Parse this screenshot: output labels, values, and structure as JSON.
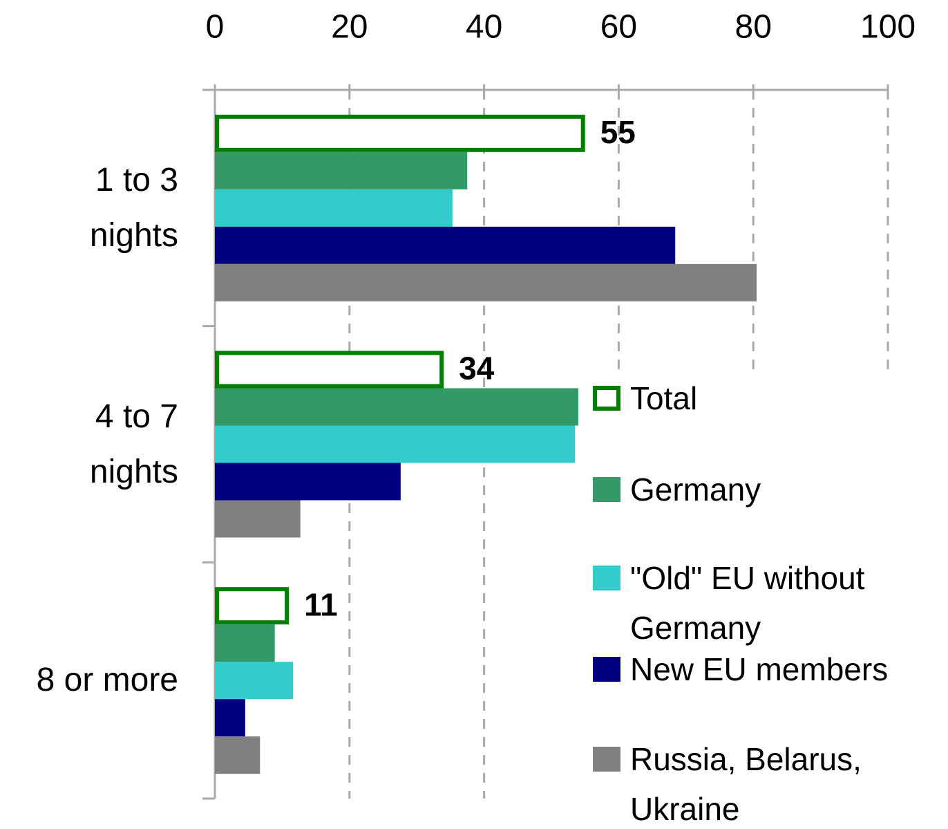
{
  "chart_data": {
    "type": "barh",
    "categories": [
      "1 to 3 nights",
      "4 to 7 nights",
      "8 or more"
    ],
    "series": [
      {
        "name": "Total",
        "color": "#008000",
        "style": "outline",
        "data_labels": true,
        "values": [
          55,
          34,
          11
        ]
      },
      {
        "name": "Germany",
        "color": "#339966",
        "values": [
          37.5,
          54,
          8.9
        ]
      },
      {
        "name": "\"Old\" EU without Germany",
        "color": "#33cccc",
        "values": [
          35.3,
          53.5,
          11.6
        ]
      },
      {
        "name": "New EU members",
        "color": "#000080",
        "values": [
          68.4,
          27.6,
          4.5
        ]
      },
      {
        "name": "Russia, Belarus, Ukraine",
        "color": "#808080",
        "values": [
          80.5,
          12.7,
          6.7
        ]
      }
    ],
    "xlim": [
      0,
      100
    ],
    "xticks": [
      0,
      20,
      40,
      60,
      80,
      100
    ],
    "grid": true,
    "legend": "lower right"
  }
}
